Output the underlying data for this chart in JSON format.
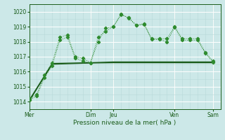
{
  "bg_color": "#cce8e8",
  "grid_color_major": "#ffffff",
  "grid_color_minor": "#b8d8d8",
  "line_color_dark": "#1a5c1a",
  "line_color_med": "#2e8b2e",
  "xlabel": "Pression niveau de la mer( hPa )",
  "ylim": [
    1013.5,
    1020.5
  ],
  "yticks": [
    1014,
    1015,
    1016,
    1017,
    1018,
    1019,
    1020
  ],
  "x_day_labels": [
    "Mer",
    "Dim",
    "Jeu",
    "Ven",
    "Sam"
  ],
  "x_day_positions": [
    0,
    8,
    11,
    19,
    24
  ],
  "xlim": [
    0,
    25
  ],
  "series1_x": [
    0,
    1,
    2,
    3,
    4,
    5,
    6,
    7,
    8,
    9,
    10,
    11,
    12,
    13,
    14,
    15,
    16,
    17,
    18,
    19,
    20,
    21,
    22,
    23,
    24
  ],
  "series1_y": [
    1014.2,
    1014.5,
    1015.8,
    1016.6,
    1018.3,
    1018.45,
    1017.0,
    1016.9,
    1016.6,
    1018.0,
    1018.9,
    1019.0,
    1019.8,
    1019.6,
    1019.1,
    1019.2,
    1018.2,
    1018.2,
    1018.2,
    1019.0,
    1018.2,
    1018.2,
    1018.2,
    1017.3,
    1016.7
  ],
  "series2_x": [
    0,
    1,
    2,
    3,
    4,
    5,
    6,
    7,
    8,
    9,
    10,
    11,
    12,
    13,
    14,
    15,
    16,
    17,
    18,
    19,
    20,
    21,
    22,
    23,
    24
  ],
  "series2_y": [
    1014.1,
    1014.4,
    1015.6,
    1016.4,
    1018.1,
    1018.3,
    1016.9,
    1016.7,
    1016.6,
    1018.3,
    1018.7,
    1019.0,
    1019.85,
    1019.55,
    1019.1,
    1019.15,
    1018.15,
    1018.15,
    1018.0,
    1018.95,
    1018.1,
    1018.1,
    1018.1,
    1017.25,
    1016.65
  ],
  "series3_x": [
    0,
    3,
    8,
    11,
    17,
    19,
    24
  ],
  "series3_y": [
    1014.1,
    1016.55,
    1016.6,
    1016.65,
    1016.65,
    1016.65,
    1016.65
  ],
  "series4_x": [
    0,
    3,
    8,
    11,
    17,
    19,
    24
  ],
  "series4_y": [
    1014.05,
    1016.5,
    1016.58,
    1016.6,
    1016.6,
    1016.6,
    1016.6
  ]
}
